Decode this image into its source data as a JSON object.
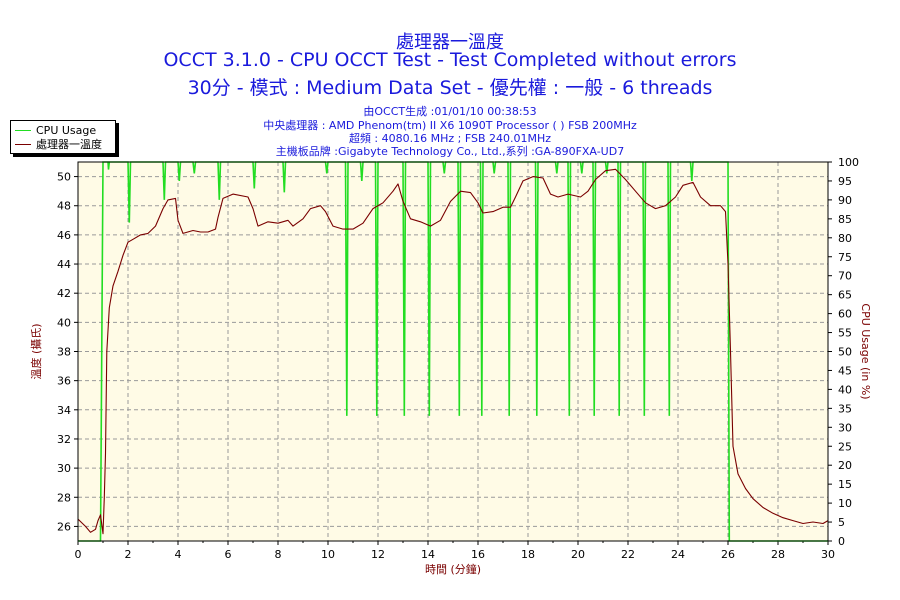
{
  "titles": {
    "main": "處理器一溫度",
    "line2": "OCCT 3.1.0 - CPU OCCT Test - Test Completed without errors",
    "line3": "30分 - 模式 : Medium Data Set - 優先權 : 一般 - 6 threads"
  },
  "info": {
    "line1": "由OCCT生成 :01/01/10 00:38:53",
    "line2": "中央處理器 : AMD Phenom(tm) II X6 1090T Processor (  ) FSB 200MHz",
    "line3": "超頻 : 4080.16 MHz ; FSB 240.01MHz",
    "line4": "主機板品牌 :Gigabyte Technology Co., Ltd.,系列 :GA-890FXA-UD7"
  },
  "legend": {
    "cpu_usage": "CPU Usage",
    "temperature": "處理器一溫度"
  },
  "colors": {
    "plot_bg": "#fffbe6",
    "grid": "#9a9a9a",
    "cpu_usage": "#22dd22",
    "temperature": "#7a0000",
    "title": "#1a1adc"
  },
  "chart_data": {
    "type": "line",
    "xlabel": "時間 (分鐘)",
    "ylabel_left": "溫度 (攝氏)",
    "ylabel_right": "CPU Usage (in %)",
    "xlim": [
      0,
      30
    ],
    "ylim_left": [
      25,
      51
    ],
    "ylim_right": [
      0,
      100
    ],
    "x_ticks": [
      "0",
      "2",
      "4",
      "6",
      "8",
      "10",
      "12",
      "14",
      "16",
      "18",
      "20",
      "22",
      "24",
      "26",
      "28",
      "30"
    ],
    "y_left_ticks": [
      "26",
      "28",
      "30",
      "32",
      "34",
      "36",
      "38",
      "40",
      "42",
      "44",
      "46",
      "48",
      "50"
    ],
    "y_right_ticks": [
      "0",
      "5",
      "10",
      "15",
      "20",
      "25",
      "30",
      "35",
      "40",
      "45",
      "50",
      "55",
      "60",
      "65",
      "70",
      "75",
      "80",
      "85",
      "90",
      "95",
      "100"
    ],
    "grid": true,
    "legend_position": "top-left",
    "series": [
      {
        "name": "CPU Usage",
        "axis": "right",
        "points": [
          [
            0.0,
            0
          ],
          [
            0.9,
            0
          ],
          [
            1.0,
            100
          ],
          [
            1.2,
            100
          ],
          [
            1.22,
            98
          ],
          [
            1.25,
            100
          ],
          [
            2.0,
            100
          ],
          [
            2.05,
            84
          ],
          [
            2.1,
            100
          ],
          [
            3.4,
            100
          ],
          [
            3.45,
            90
          ],
          [
            3.5,
            100
          ],
          [
            4.0,
            100
          ],
          [
            4.05,
            95
          ],
          [
            4.1,
            100
          ],
          [
            4.6,
            100
          ],
          [
            4.65,
            97
          ],
          [
            4.7,
            100
          ],
          [
            5.6,
            100
          ],
          [
            5.65,
            90
          ],
          [
            5.7,
            100
          ],
          [
            7.0,
            100
          ],
          [
            7.05,
            93
          ],
          [
            7.1,
            100
          ],
          [
            8.2,
            100
          ],
          [
            8.25,
            92
          ],
          [
            8.3,
            100
          ],
          [
            9.9,
            100
          ],
          [
            9.95,
            97
          ],
          [
            10.0,
            100
          ],
          [
            10.7,
            100
          ],
          [
            10.75,
            33
          ],
          [
            10.8,
            100
          ],
          [
            11.3,
            100
          ],
          [
            11.35,
            95
          ],
          [
            11.4,
            100
          ],
          [
            11.9,
            100
          ],
          [
            11.95,
            33
          ],
          [
            12.0,
            100
          ],
          [
            13.0,
            100
          ],
          [
            13.05,
            33
          ],
          [
            13.1,
            100
          ],
          [
            14.0,
            100
          ],
          [
            14.05,
            33
          ],
          [
            14.1,
            100
          ],
          [
            14.6,
            100
          ],
          [
            14.65,
            97
          ],
          [
            14.7,
            100
          ],
          [
            15.2,
            100
          ],
          [
            15.25,
            33
          ],
          [
            15.3,
            100
          ],
          [
            16.1,
            100
          ],
          [
            16.15,
            33
          ],
          [
            16.2,
            100
          ],
          [
            16.6,
            100
          ],
          [
            16.65,
            97
          ],
          [
            16.7,
            100
          ],
          [
            17.2,
            100
          ],
          [
            17.25,
            33
          ],
          [
            17.3,
            100
          ],
          [
            18.3,
            100
          ],
          [
            18.35,
            33
          ],
          [
            18.4,
            100
          ],
          [
            19.1,
            100
          ],
          [
            19.15,
            97
          ],
          [
            19.2,
            100
          ],
          [
            19.6,
            100
          ],
          [
            19.65,
            33
          ],
          [
            19.7,
            100
          ],
          [
            20.1,
            100
          ],
          [
            20.15,
            97
          ],
          [
            20.2,
            100
          ],
          [
            20.6,
            100
          ],
          [
            20.65,
            33
          ],
          [
            20.7,
            100
          ],
          [
            21.1,
            100
          ],
          [
            21.15,
            97
          ],
          [
            21.2,
            100
          ],
          [
            21.6,
            100
          ],
          [
            21.65,
            33
          ],
          [
            21.7,
            100
          ],
          [
            22.6,
            100
          ],
          [
            22.65,
            33
          ],
          [
            22.7,
            100
          ],
          [
            23.6,
            100
          ],
          [
            23.65,
            33
          ],
          [
            23.7,
            100
          ],
          [
            24.5,
            100
          ],
          [
            24.55,
            95
          ],
          [
            24.6,
            100
          ],
          [
            26.0,
            100
          ],
          [
            26.05,
            0
          ],
          [
            30.0,
            0
          ]
        ]
      },
      {
        "name": "處理器一溫度",
        "axis": "left",
        "points": [
          [
            0.0,
            26.5
          ],
          [
            0.3,
            26.0
          ],
          [
            0.5,
            25.6
          ],
          [
            0.7,
            25.8
          ],
          [
            0.8,
            26.4
          ],
          [
            0.9,
            26.8
          ],
          [
            1.0,
            25.5
          ],
          [
            1.05,
            28
          ],
          [
            1.1,
            31
          ],
          [
            1.15,
            38
          ],
          [
            1.25,
            41
          ],
          [
            1.4,
            42.5
          ],
          [
            1.6,
            43.5
          ],
          [
            1.8,
            44.6
          ],
          [
            2.0,
            45.5
          ],
          [
            2.2,
            45.7
          ],
          [
            2.5,
            46.0
          ],
          [
            2.8,
            46.1
          ],
          [
            3.1,
            46.6
          ],
          [
            3.4,
            47.8
          ],
          [
            3.6,
            48.4
          ],
          [
            3.9,
            48.5
          ],
          [
            4.0,
            47.0
          ],
          [
            4.2,
            46.1
          ],
          [
            4.6,
            46.3
          ],
          [
            4.9,
            46.2
          ],
          [
            5.2,
            46.2
          ],
          [
            5.5,
            46.4
          ],
          [
            5.6,
            47.2
          ],
          [
            5.8,
            48.5
          ],
          [
            6.2,
            48.8
          ],
          [
            6.8,
            48.6
          ],
          [
            7.0,
            47.8
          ],
          [
            7.2,
            46.6
          ],
          [
            7.6,
            46.9
          ],
          [
            8.0,
            46.8
          ],
          [
            8.4,
            47.0
          ],
          [
            8.6,
            46.6
          ],
          [
            9.0,
            47.1
          ],
          [
            9.3,
            47.8
          ],
          [
            9.7,
            48.0
          ],
          [
            9.9,
            47.6
          ],
          [
            10.2,
            46.6
          ],
          [
            10.6,
            46.4
          ],
          [
            11.0,
            46.4
          ],
          [
            11.4,
            46.8
          ],
          [
            11.8,
            47.8
          ],
          [
            12.2,
            48.2
          ],
          [
            12.6,
            49.0
          ],
          [
            12.8,
            49.5
          ],
          [
            13.0,
            48.3
          ],
          [
            13.3,
            47.1
          ],
          [
            13.7,
            46.9
          ],
          [
            14.1,
            46.6
          ],
          [
            14.5,
            47.0
          ],
          [
            14.9,
            48.3
          ],
          [
            15.3,
            49.0
          ],
          [
            15.7,
            48.9
          ],
          [
            16.0,
            48.2
          ],
          [
            16.2,
            47.5
          ],
          [
            16.6,
            47.6
          ],
          [
            17.0,
            47.9
          ],
          [
            17.3,
            47.9
          ],
          [
            17.5,
            48.6
          ],
          [
            17.8,
            49.7
          ],
          [
            18.2,
            50.0
          ],
          [
            18.6,
            49.9
          ],
          [
            18.9,
            48.8
          ],
          [
            19.2,
            48.6
          ],
          [
            19.6,
            48.8
          ],
          [
            20.1,
            48.6
          ],
          [
            20.4,
            49.0
          ],
          [
            20.7,
            49.8
          ],
          [
            21.1,
            50.4
          ],
          [
            21.5,
            50.5
          ],
          [
            21.9,
            49.8
          ],
          [
            22.3,
            49.0
          ],
          [
            22.7,
            48.2
          ],
          [
            23.1,
            47.8
          ],
          [
            23.5,
            48.0
          ],
          [
            23.9,
            48.6
          ],
          [
            24.2,
            49.4
          ],
          [
            24.6,
            49.6
          ],
          [
            24.9,
            48.6
          ],
          [
            25.3,
            48.0
          ],
          [
            25.7,
            48.0
          ],
          [
            25.9,
            47.6
          ],
          [
            26.0,
            44.0
          ],
          [
            26.1,
            38.0
          ],
          [
            26.2,
            31.5
          ],
          [
            26.4,
            29.6
          ],
          [
            26.7,
            28.6
          ],
          [
            27.0,
            27.9
          ],
          [
            27.4,
            27.3
          ],
          [
            27.8,
            26.9
          ],
          [
            28.2,
            26.6
          ],
          [
            28.6,
            26.4
          ],
          [
            29.0,
            26.2
          ],
          [
            29.4,
            26.3
          ],
          [
            29.8,
            26.2
          ],
          [
            30.0,
            26.4
          ]
        ]
      }
    ]
  }
}
